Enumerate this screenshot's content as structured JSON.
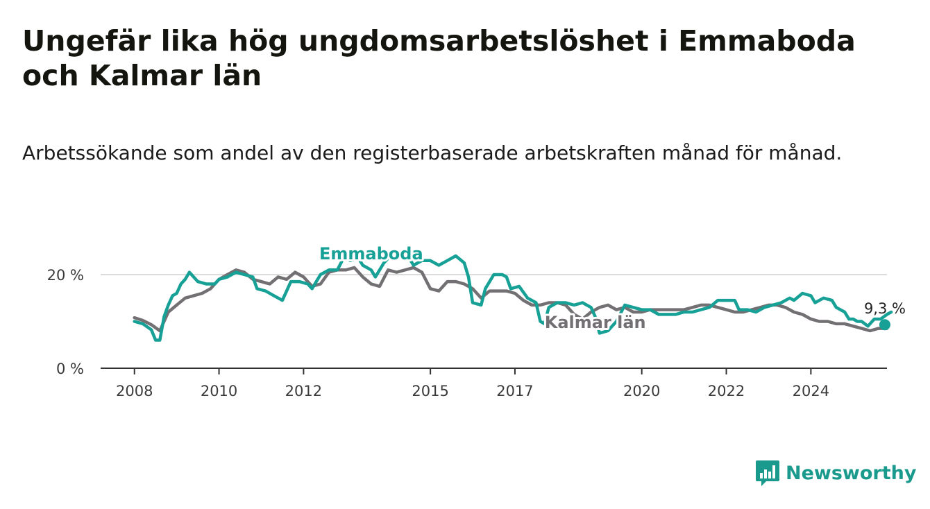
{
  "title": "Ungefär lika hög ungdomsarbetslöshet i Emmaboda och Kalmar län",
  "subtitle": "Arbetssökande som andel av den registerbaserade arbetskraften månad för månad.",
  "brand": {
    "name": "Newsworthy"
  },
  "chart_data": {
    "type": "line",
    "x_unit": "year",
    "ylim": [
      0,
      25
    ],
    "y_ticks": [
      {
        "value": 0,
        "label": "0 %"
      },
      {
        "value": 20,
        "label": "20 %"
      }
    ],
    "x_ticks": [
      {
        "value": 2008,
        "label": "2008"
      },
      {
        "value": 2010,
        "label": "2010"
      },
      {
        "value": 2012,
        "label": "2012"
      },
      {
        "value": 2015,
        "label": "2015"
      },
      {
        "value": 2017,
        "label": "2017"
      },
      {
        "value": 2020,
        "label": "2020"
      },
      {
        "value": 2022,
        "label": "2022"
      },
      {
        "value": 2024,
        "label": "2024"
      }
    ],
    "xlim": [
      2007.2,
      2025.8
    ],
    "grid": "horizontal",
    "series": [
      {
        "name": "Emmaboda",
        "color": "#17a196",
        "points": [
          [
            2008.0,
            10.0
          ],
          [
            2008.2,
            9.5
          ],
          [
            2008.4,
            8.2
          ],
          [
            2008.5,
            6.0
          ],
          [
            2008.6,
            6.0
          ],
          [
            2008.7,
            11.0
          ],
          [
            2008.8,
            13.5
          ],
          [
            2008.9,
            15.5
          ],
          [
            2009.0,
            16.0
          ],
          [
            2009.1,
            18.0
          ],
          [
            2009.2,
            19.0
          ],
          [
            2009.3,
            20.5
          ],
          [
            2009.4,
            19.5
          ],
          [
            2009.5,
            18.5
          ],
          [
            2009.7,
            18.0
          ],
          [
            2009.9,
            18.0
          ],
          [
            2010.0,
            19.0
          ],
          [
            2010.2,
            19.5
          ],
          [
            2010.4,
            20.5
          ],
          [
            2010.6,
            20.0
          ],
          [
            2010.8,
            19.5
          ],
          [
            2010.9,
            17.0
          ],
          [
            2011.1,
            16.5
          ],
          [
            2011.3,
            15.5
          ],
          [
            2011.5,
            14.5
          ],
          [
            2011.7,
            18.5
          ],
          [
            2011.9,
            18.5
          ],
          [
            2012.1,
            18.0
          ],
          [
            2012.2,
            17.0
          ],
          [
            2012.4,
            20.0
          ],
          [
            2012.6,
            21.0
          ],
          [
            2012.8,
            21.0
          ],
          [
            2013.0,
            24.5
          ],
          [
            2013.1,
            23.0
          ],
          [
            2013.3,
            23.5
          ],
          [
            2013.4,
            22.0
          ],
          [
            2013.6,
            21.0
          ],
          [
            2013.7,
            19.5
          ],
          [
            2013.9,
            22.5
          ],
          [
            2014.1,
            24.5
          ],
          [
            2014.2,
            24.5
          ],
          [
            2014.4,
            25.0
          ],
          [
            2014.6,
            22.0
          ],
          [
            2014.8,
            23.0
          ],
          [
            2015.0,
            23.0
          ],
          [
            2015.2,
            22.0
          ],
          [
            2015.4,
            23.0
          ],
          [
            2015.6,
            24.0
          ],
          [
            2015.8,
            22.5
          ],
          [
            2015.9,
            19.5
          ],
          [
            2016.0,
            14.0
          ],
          [
            2016.2,
            13.5
          ],
          [
            2016.3,
            17.0
          ],
          [
            2016.5,
            20.0
          ],
          [
            2016.7,
            20.0
          ],
          [
            2016.8,
            19.5
          ],
          [
            2016.9,
            17.0
          ],
          [
            2017.1,
            17.5
          ],
          [
            2017.3,
            15.0
          ],
          [
            2017.5,
            14.0
          ],
          [
            2017.6,
            10.0
          ],
          [
            2017.7,
            9.5
          ],
          [
            2017.8,
            13.0
          ],
          [
            2018.0,
            14.0
          ],
          [
            2018.2,
            14.0
          ],
          [
            2018.4,
            13.5
          ],
          [
            2018.6,
            14.0
          ],
          [
            2018.8,
            13.0
          ],
          [
            2018.9,
            11.0
          ],
          [
            2019.0,
            7.5
          ],
          [
            2019.2,
            8.0
          ],
          [
            2019.4,
            10.0
          ],
          [
            2019.6,
            13.5
          ],
          [
            2019.8,
            13.0
          ],
          [
            2020.0,
            12.5
          ],
          [
            2020.2,
            12.5
          ],
          [
            2020.4,
            11.5
          ],
          [
            2020.6,
            11.5
          ],
          [
            2020.8,
            11.5
          ],
          [
            2021.0,
            12.0
          ],
          [
            2021.2,
            12.0
          ],
          [
            2021.4,
            12.5
          ],
          [
            2021.6,
            13.0
          ],
          [
            2021.8,
            14.5
          ],
          [
            2022.0,
            14.5
          ],
          [
            2022.2,
            14.5
          ],
          [
            2022.3,
            12.5
          ],
          [
            2022.5,
            12.5
          ],
          [
            2022.7,
            12.0
          ],
          [
            2022.9,
            13.0
          ],
          [
            2023.1,
            13.5
          ],
          [
            2023.3,
            14.0
          ],
          [
            2023.5,
            15.0
          ],
          [
            2023.6,
            14.5
          ],
          [
            2023.8,
            16.0
          ],
          [
            2024.0,
            15.5
          ],
          [
            2024.1,
            14.0
          ],
          [
            2024.3,
            15.0
          ],
          [
            2024.5,
            14.5
          ],
          [
            2024.6,
            13.0
          ],
          [
            2024.8,
            12.0
          ],
          [
            2024.9,
            10.5
          ],
          [
            2025.0,
            10.5
          ],
          [
            2025.1,
            10.0
          ],
          [
            2025.2,
            10.0
          ],
          [
            2025.35,
            9.0
          ],
          [
            2025.5,
            10.5
          ],
          [
            2025.65,
            10.5
          ],
          [
            2025.8,
            11.5
          ],
          [
            2025.9,
            12.0
          ]
        ]
      },
      {
        "name": "Kalmar län",
        "color": "#737073",
        "points": [
          [
            2008.0,
            10.8
          ],
          [
            2008.2,
            10.2
          ],
          [
            2008.4,
            9.3
          ],
          [
            2008.6,
            8.0
          ],
          [
            2008.8,
            12.0
          ],
          [
            2009.0,
            13.5
          ],
          [
            2009.2,
            15.0
          ],
          [
            2009.4,
            15.5
          ],
          [
            2009.6,
            16.0
          ],
          [
            2009.8,
            17.0
          ],
          [
            2010.0,
            19.0
          ],
          [
            2010.2,
            20.0
          ],
          [
            2010.4,
            21.0
          ],
          [
            2010.6,
            20.5
          ],
          [
            2010.8,
            19.0
          ],
          [
            2011.0,
            18.5
          ],
          [
            2011.2,
            18.0
          ],
          [
            2011.4,
            19.5
          ],
          [
            2011.6,
            19.0
          ],
          [
            2011.8,
            20.5
          ],
          [
            2012.0,
            19.5
          ],
          [
            2012.2,
            17.5
          ],
          [
            2012.4,
            18.0
          ],
          [
            2012.6,
            20.5
          ],
          [
            2012.8,
            21.0
          ],
          [
            2013.0,
            21.0
          ],
          [
            2013.2,
            21.5
          ],
          [
            2013.4,
            19.5
          ],
          [
            2013.6,
            18.0
          ],
          [
            2013.8,
            17.5
          ],
          [
            2014.0,
            21.0
          ],
          [
            2014.2,
            20.5
          ],
          [
            2014.4,
            21.0
          ],
          [
            2014.6,
            21.5
          ],
          [
            2014.8,
            20.5
          ],
          [
            2015.0,
            17.0
          ],
          [
            2015.2,
            16.5
          ],
          [
            2015.4,
            18.5
          ],
          [
            2015.6,
            18.5
          ],
          [
            2015.8,
            18.0
          ],
          [
            2016.0,
            17.0
          ],
          [
            2016.2,
            15.0
          ],
          [
            2016.4,
            16.5
          ],
          [
            2016.6,
            16.5
          ],
          [
            2016.8,
            16.5
          ],
          [
            2017.0,
            16.0
          ],
          [
            2017.2,
            14.5
          ],
          [
            2017.4,
            13.5
          ],
          [
            2017.6,
            13.5
          ],
          [
            2017.8,
            14.0
          ],
          [
            2018.0,
            14.0
          ],
          [
            2018.2,
            13.5
          ],
          [
            2018.4,
            11.5
          ],
          [
            2018.6,
            10.5
          ],
          [
            2018.8,
            12.0
          ],
          [
            2019.0,
            13.0
          ],
          [
            2019.2,
            13.5
          ],
          [
            2019.4,
            12.5
          ],
          [
            2019.6,
            13.0
          ],
          [
            2019.8,
            12.0
          ],
          [
            2020.0,
            12.0
          ],
          [
            2020.2,
            12.5
          ],
          [
            2020.4,
            12.5
          ],
          [
            2020.6,
            12.5
          ],
          [
            2020.8,
            12.5
          ],
          [
            2021.0,
            12.5
          ],
          [
            2021.2,
            13.0
          ],
          [
            2021.4,
            13.5
          ],
          [
            2021.6,
            13.5
          ],
          [
            2021.8,
            13.0
          ],
          [
            2022.0,
            12.5
          ],
          [
            2022.2,
            12.0
          ],
          [
            2022.4,
            12.0
          ],
          [
            2022.6,
            12.5
          ],
          [
            2022.8,
            13.0
          ],
          [
            2023.0,
            13.5
          ],
          [
            2023.2,
            13.5
          ],
          [
            2023.4,
            13.0
          ],
          [
            2023.6,
            12.0
          ],
          [
            2023.8,
            11.5
          ],
          [
            2024.0,
            10.5
          ],
          [
            2024.2,
            10.0
          ],
          [
            2024.4,
            10.0
          ],
          [
            2024.6,
            9.5
          ],
          [
            2024.8,
            9.5
          ],
          [
            2025.0,
            9.0
          ],
          [
            2025.2,
            8.5
          ],
          [
            2025.4,
            8.0
          ],
          [
            2025.6,
            8.5
          ],
          [
            2025.8,
            8.5
          ]
        ]
      }
    ],
    "series_labels": [
      {
        "text": "Emmaboda",
        "color": "#17a196"
      },
      {
        "text": "Kalmar län",
        "color": "#737073"
      }
    ],
    "annotation": {
      "text": "9,3 %",
      "x": 2025.75,
      "y": 9.3
    }
  }
}
